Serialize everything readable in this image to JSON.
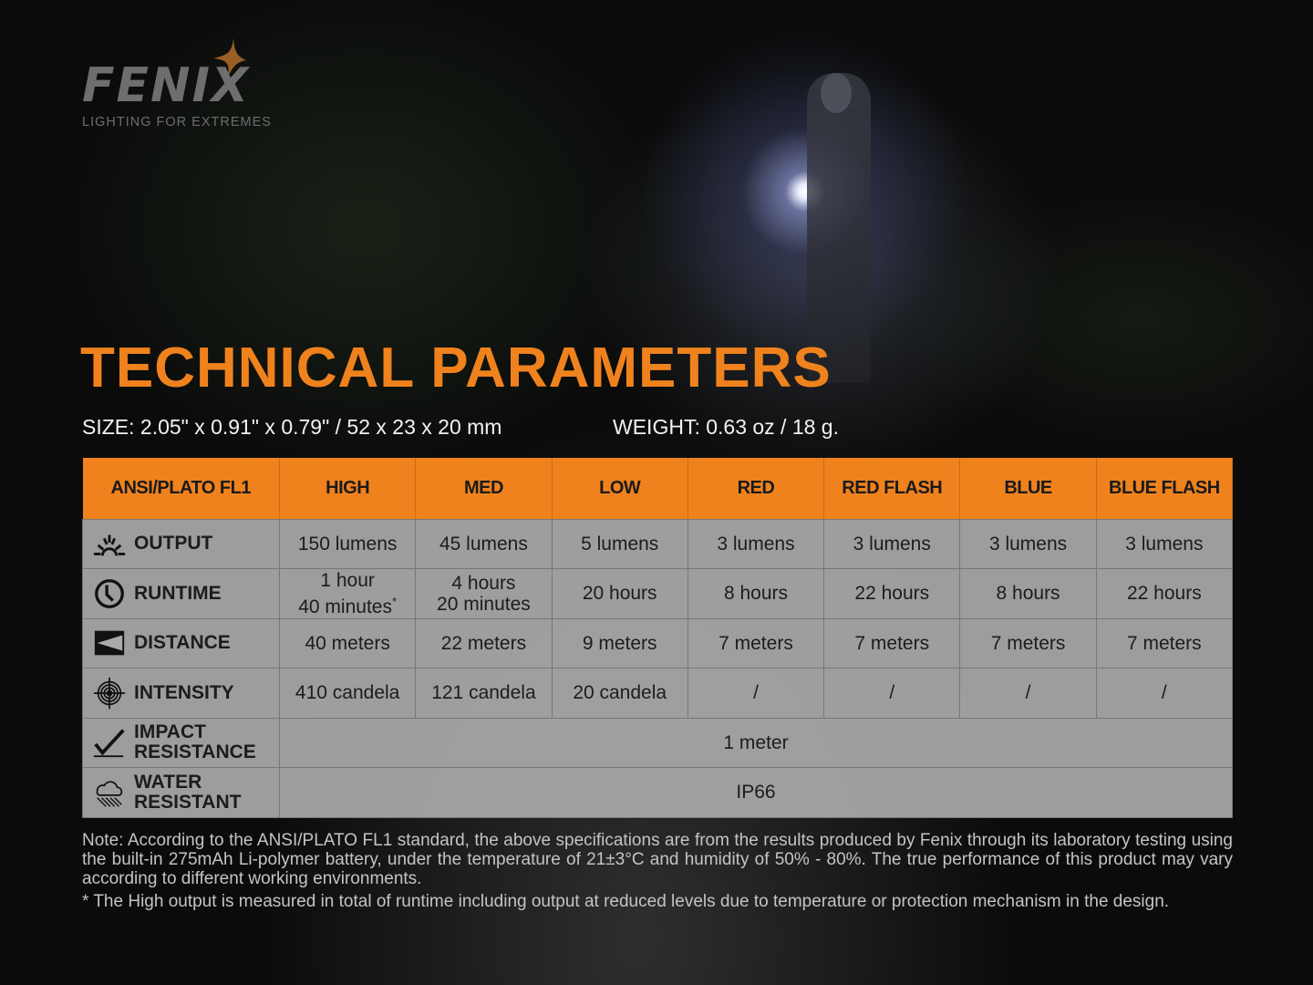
{
  "brand": {
    "name": "FENIX",
    "tagline": "LIGHTING FOR EXTREMES"
  },
  "title": "TECHNICAL PARAMETERS",
  "size": "SIZE: 2.05\" x 0.91\" x 0.79\" / 52 x 23 x 20 mm",
  "weight": "WEIGHT: 0.63 oz / 18 g.",
  "table": {
    "headers": [
      "ANSI/PLATO FL1",
      "HIGH",
      "MED",
      "LOW",
      "RED",
      "RED FLASH",
      "BLUE",
      "BLUE FLASH"
    ],
    "rows": [
      {
        "label": "OUTPUT",
        "icon": "sun-rays-icon",
        "values": [
          "150 lumens",
          "45 lumens",
          "5 lumens",
          "3 lumens",
          "3 lumens",
          "3 lumens",
          "3 lumens"
        ]
      },
      {
        "label": "RUNTIME",
        "icon": "clock-icon",
        "values": [
          "1 hour 40 minutes",
          "4 hours 20 minutes",
          "20 hours",
          "8 hours",
          "22 hours",
          "8 hours",
          "22 hours"
        ],
        "high_line1": "1 hour",
        "high_line2": "40 minutes",
        "high_mark": "*",
        "med_line1": "4 hours",
        "med_line2": "20 minutes"
      },
      {
        "label": "DISTANCE",
        "icon": "beam-distance-icon",
        "values": [
          "40 meters",
          "22 meters",
          "9 meters",
          "7 meters",
          "7 meters",
          "7 meters",
          "7 meters"
        ]
      },
      {
        "label": "INTENSITY",
        "icon": "target-icon",
        "values": [
          "410 candela",
          "121 candela",
          "20 candela",
          "/",
          "/",
          "/",
          "/"
        ]
      },
      {
        "label1": "IMPACT",
        "label2": "RESISTANCE",
        "icon": "impact-check-icon",
        "value": "1 meter"
      },
      {
        "label1": "WATER",
        "label2": "RESISTANT",
        "icon": "rain-cloud-icon",
        "value": "IP66"
      }
    ]
  },
  "notes": [
    "Note: According to the ANSI/PLATO FL1 standard, the above specifications are from the results produced by Fenix through its laboratory testing using the built-in 275mAh Li-polymer battery, under the temperature of 21±3°C and humidity of 50% - 80%. The true performance of this product may vary according to different working environments.",
    "* The High output is measured in total of runtime including output at reduced levels due to temperature or protection mechanism in the design."
  ],
  "colors": {
    "accent": "#f0821e",
    "table_bg": "#aaaaaa"
  }
}
